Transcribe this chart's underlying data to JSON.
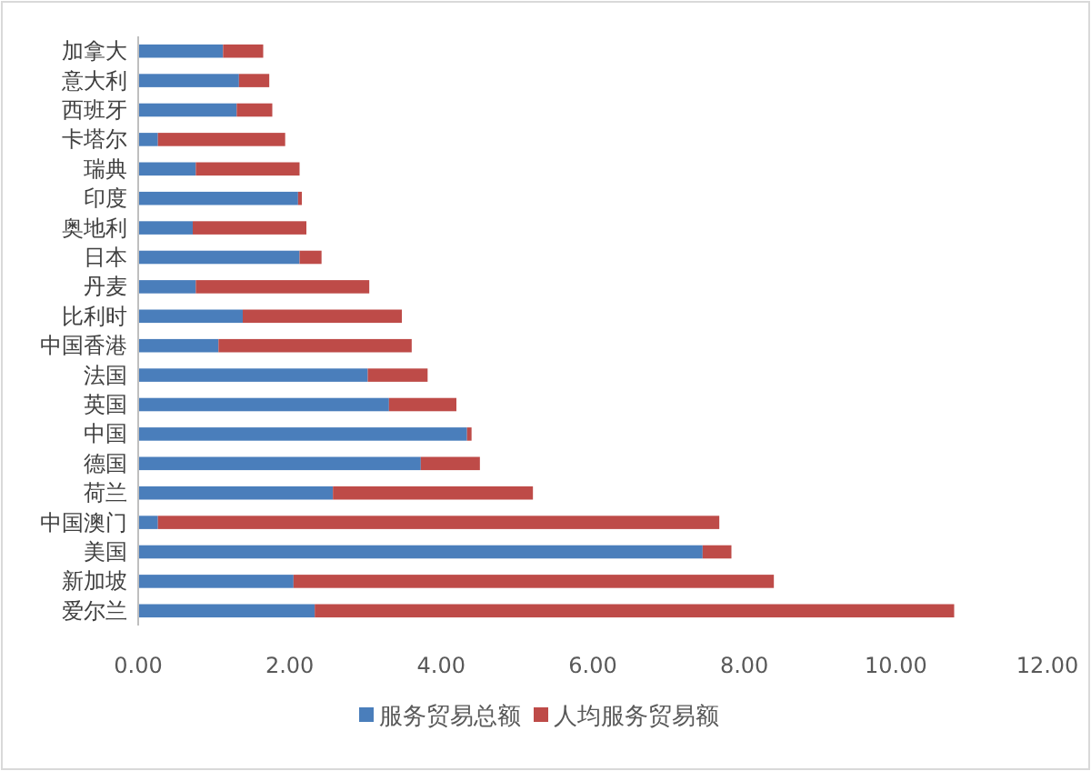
{
  "chart_data": {
    "type": "bar",
    "orientation": "horizontal",
    "stacked": true,
    "categories": [
      "加拿大",
      "意大利",
      "西班牙",
      "卡塔尔",
      "瑞典",
      "印度",
      "奥地利",
      "日本",
      "丹麦",
      "比利时",
      "中国香港",
      "法国",
      "英国",
      "中国",
      "德国",
      "荷兰",
      "中国澳门",
      "美国",
      "新加坡",
      "爱尔兰"
    ],
    "series": [
      {
        "name": "服务贸易总额",
        "color": "#4a7ebb",
        "values": [
          1.12,
          1.33,
          1.3,
          0.26,
          0.76,
          2.11,
          0.72,
          2.13,
          0.76,
          1.38,
          1.06,
          3.03,
          3.31,
          4.34,
          3.73,
          2.57,
          0.26,
          7.45,
          2.05,
          2.33
        ]
      },
      {
        "name": "人均服务贸易额",
        "color": "#be4b48",
        "values": [
          0.53,
          0.4,
          0.47,
          1.68,
          1.37,
          0.05,
          1.5,
          0.29,
          2.29,
          2.1,
          2.55,
          0.79,
          0.89,
          0.06,
          0.78,
          2.64,
          7.41,
          0.38,
          6.34,
          8.44
        ]
      }
    ],
    "xlim": [
      0,
      12
    ],
    "xticks": [
      {
        "value": 0,
        "label": "0.00"
      },
      {
        "value": 2,
        "label": "2.00"
      },
      {
        "value": 4,
        "label": "4.00"
      },
      {
        "value": 6,
        "label": "6.00"
      },
      {
        "value": 8,
        "label": "8.00"
      },
      {
        "value": 10,
        "label": "10.00"
      },
      {
        "value": 12,
        "label": "12.00"
      }
    ],
    "grid": false,
    "legend": "bottom"
  }
}
